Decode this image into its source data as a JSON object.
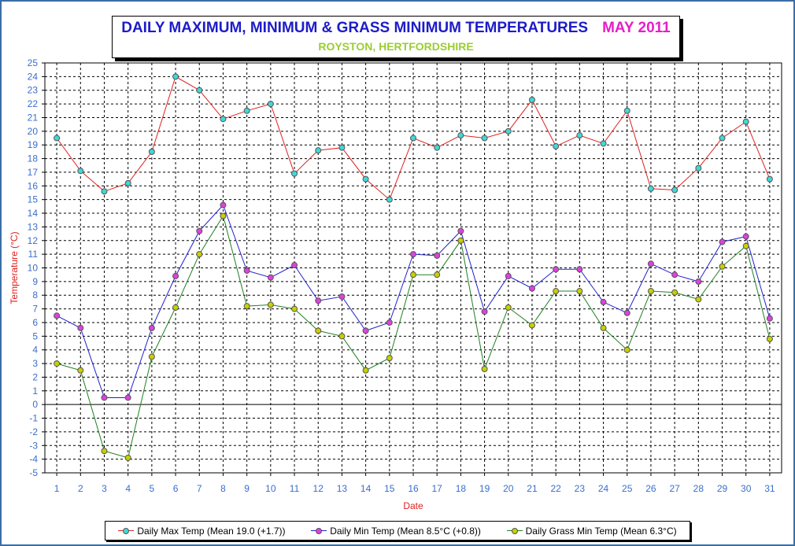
{
  "header": {
    "title": "DAILY MAXIMUM, MINIMUM & GRASS MINIMUM TEMPERATURES",
    "month": "MAY 2011",
    "subtitle": "ROYSTON, HERTFORDSHIRE"
  },
  "colors": {
    "title": "#1c1cc8",
    "month": "#e61ec8",
    "subtitle": "#9acd32",
    "axis_labels": "#e02020",
    "tick_labels": "#3a6ecc",
    "max_line": "#e02020",
    "max_marker": "#40d8d8",
    "min_line": "#2020d0",
    "min_marker": "#e040e0",
    "grass_line": "#208020",
    "grass_marker": "#c8d000",
    "frame": "#3a6ea5"
  },
  "chart_data": {
    "type": "line",
    "xlabel": "Date",
    "ylabel": "Temperature (°C)",
    "x": [
      1,
      2,
      3,
      4,
      5,
      6,
      7,
      8,
      9,
      10,
      11,
      12,
      13,
      14,
      15,
      16,
      17,
      18,
      19,
      20,
      21,
      22,
      23,
      24,
      25,
      26,
      27,
      28,
      29,
      30,
      31
    ],
    "ylim": [
      -5,
      25
    ],
    "ystep": 1,
    "grid": true,
    "legend_position": "bottom",
    "series": [
      {
        "name": "Daily Max Temp (Mean 19.0 (+1.7))",
        "key": "max",
        "values": [
          19.5,
          17.1,
          15.6,
          16.2,
          18.5,
          24.0,
          23.0,
          20.9,
          21.5,
          22.0,
          16.9,
          18.6,
          18.8,
          16.5,
          15.0,
          19.5,
          18.8,
          19.7,
          19.5,
          20.0,
          22.3,
          18.9,
          19.7,
          19.1,
          21.5,
          15.8,
          15.7,
          17.3,
          19.5,
          20.7,
          16.5
        ]
      },
      {
        "name": "Daily Min Temp (Mean 8.5°C (+0.8))",
        "key": "min",
        "values": [
          6.5,
          5.6,
          0.5,
          0.5,
          5.6,
          9.4,
          12.7,
          14.6,
          9.8,
          9.3,
          10.2,
          7.6,
          7.9,
          5.4,
          6.0,
          11.0,
          10.9,
          12.7,
          6.8,
          9.4,
          8.5,
          9.9,
          9.9,
          7.5,
          6.7,
          10.3,
          9.5,
          9.0,
          11.9,
          12.3,
          6.3
        ]
      },
      {
        "name": "Daily Grass Min Temp (Mean 6.3°C)",
        "key": "grass",
        "values": [
          3.0,
          2.5,
          -3.4,
          -3.9,
          3.5,
          7.1,
          11.0,
          13.8,
          7.2,
          7.3,
          7.0,
          5.4,
          5.0,
          2.5,
          3.4,
          9.5,
          9.5,
          12.0,
          2.6,
          7.1,
          5.8,
          8.3,
          8.3,
          5.6,
          4.0,
          8.3,
          8.2,
          7.7,
          10.1,
          11.6,
          4.8
        ]
      }
    ]
  }
}
